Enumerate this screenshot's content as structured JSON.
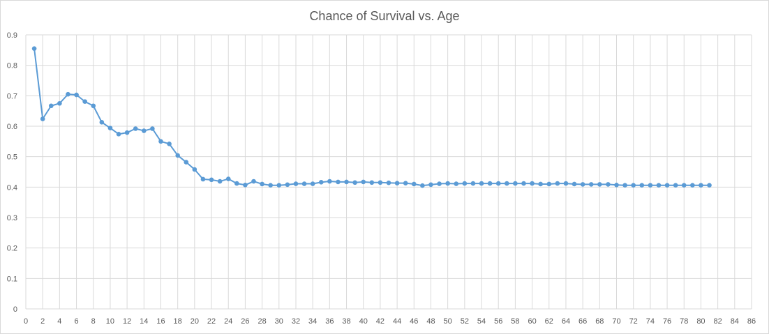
{
  "chart_data": {
    "type": "line",
    "title": "Chance of Survival vs. Age",
    "xlabel": "",
    "ylabel": "",
    "xlim": [
      0,
      86
    ],
    "ylim": [
      0,
      0.9
    ],
    "x_ticks": [
      0,
      2,
      4,
      6,
      8,
      10,
      12,
      14,
      16,
      18,
      20,
      22,
      24,
      26,
      28,
      30,
      32,
      34,
      36,
      38,
      40,
      42,
      44,
      46,
      48,
      50,
      52,
      54,
      56,
      58,
      60,
      62,
      64,
      66,
      68,
      70,
      72,
      74,
      76,
      78,
      80,
      82,
      84,
      86
    ],
    "y_ticks": [
      0,
      0.1,
      0.2,
      0.3,
      0.4,
      0.5,
      0.6,
      0.7,
      0.8,
      0.9
    ],
    "grid": {
      "vertical": true,
      "horizontal": true
    },
    "legend": "none",
    "colors": {
      "series": "#5b9bd5",
      "grid": "#d9d9d9",
      "text": "#595959"
    },
    "series": [
      {
        "x": [
          1,
          2,
          3,
          4,
          5,
          6,
          7,
          8,
          9,
          10,
          11,
          12,
          13,
          14,
          15,
          16,
          17,
          18,
          19,
          20,
          21,
          22,
          23,
          24,
          25,
          26,
          27,
          28,
          29,
          30,
          31,
          32,
          33,
          34,
          35,
          36,
          37,
          38,
          39,
          40,
          41,
          42,
          43,
          44,
          45,
          46,
          47,
          48,
          49,
          50,
          51,
          52,
          53,
          54,
          55,
          56,
          57,
          58,
          59,
          60,
          61,
          62,
          63,
          64,
          65,
          66,
          67,
          68,
          69,
          70,
          71,
          72,
          73,
          74,
          75,
          76,
          77,
          78,
          79,
          80,
          81
        ],
        "values": [
          0.855,
          0.624,
          0.667,
          0.675,
          0.705,
          0.703,
          0.681,
          0.667,
          0.613,
          0.594,
          0.574,
          0.579,
          0.592,
          0.585,
          0.592,
          0.55,
          0.542,
          0.504,
          0.482,
          0.458,
          0.426,
          0.424,
          0.419,
          0.427,
          0.412,
          0.407,
          0.419,
          0.41,
          0.406,
          0.406,
          0.408,
          0.411,
          0.411,
          0.411,
          0.416,
          0.419,
          0.417,
          0.417,
          0.415,
          0.417,
          0.415,
          0.415,
          0.414,
          0.413,
          0.413,
          0.41,
          0.405,
          0.408,
          0.411,
          0.412,
          0.411,
          0.412,
          0.412,
          0.412,
          0.412,
          0.412,
          0.412,
          0.412,
          0.412,
          0.412,
          0.41,
          0.41,
          0.412,
          0.412,
          0.41,
          0.409,
          0.409,
          0.409,
          0.409,
          0.407,
          0.406,
          0.406,
          0.406,
          0.406,
          0.406,
          0.406,
          0.406,
          0.406,
          0.406,
          0.406,
          0.406
        ]
      }
    ]
  }
}
